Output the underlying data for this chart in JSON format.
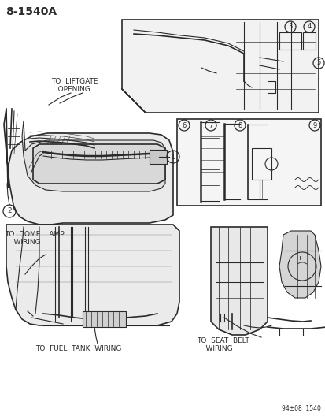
{
  "title": "8-1540A",
  "bg_color": "#ffffff",
  "text_color": "#000000",
  "lc": "#2a2a2a",
  "footer": "94±08  1540",
  "label_liftgate": "TO  LIFTGATE\n   OPENING",
  "label_dome": "TO  DOME  LAMP\n    WIRING",
  "label_fuel": "TO  FUEL  TANK  WIRING",
  "label_seatbelt": "TO  SEAT  BELT\n    WIRING",
  "title_fs": 10,
  "label_fs": 6.5,
  "callout_fs": 6,
  "footer_fs": 5.5
}
